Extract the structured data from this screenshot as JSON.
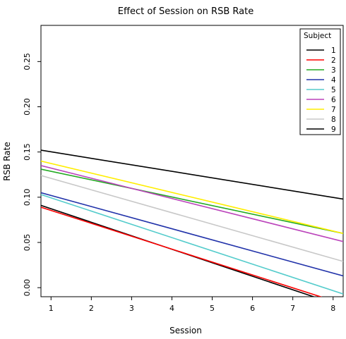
{
  "chart_data": {
    "type": "line",
    "title": "Effect of Session on RSB Rate",
    "xlabel": "Session",
    "ylabel": "RSB Rate",
    "xlim": [
      0.75,
      8.25
    ],
    "ylim": [
      -0.01,
      0.29
    ],
    "xticks": [
      "1",
      "2",
      "3",
      "4",
      "5",
      "6",
      "7",
      "8"
    ],
    "yticks": [
      "0.00",
      "0.05",
      "0.10",
      "0.15",
      "0.20",
      "0.25"
    ],
    "grid": false,
    "legend": {
      "title": "Subject",
      "position": "top-right"
    },
    "series": [
      {
        "name": "1",
        "color": "#000000",
        "x": [
          0.75,
          8.25
        ],
        "y": [
          0.091,
          -0.021
        ]
      },
      {
        "name": "2",
        "color": "#ff0000",
        "x": [
          0.75,
          8.25
        ],
        "y": [
          0.089,
          -0.018
        ]
      },
      {
        "name": "3",
        "color": "#22aa22",
        "x": [
          0.75,
          8.25
        ],
        "y": [
          0.131,
          0.06
        ]
      },
      {
        "name": "4",
        "color": "#2233aa",
        "x": [
          0.75,
          8.25
        ],
        "y": [
          0.105,
          0.013
        ]
      },
      {
        "name": "5",
        "color": "#55cccc",
        "x": [
          0.75,
          8.25
        ],
        "y": [
          0.103,
          -0.007
        ]
      },
      {
        "name": "6",
        "color": "#bb44bb",
        "x": [
          0.75,
          8.25
        ],
        "y": [
          0.135,
          0.051
        ]
      },
      {
        "name": "7",
        "color": "#ffee00",
        "x": [
          0.75,
          8.25
        ],
        "y": [
          0.14,
          0.06
        ]
      },
      {
        "name": "8",
        "color": "#c8c8c8",
        "x": [
          0.75,
          8.25
        ],
        "y": [
          0.124,
          0.029
        ]
      },
      {
        "name": "9",
        "color": "#000000",
        "x": [
          0.75,
          8.25
        ],
        "y": [
          0.152,
          0.098
        ]
      }
    ]
  }
}
